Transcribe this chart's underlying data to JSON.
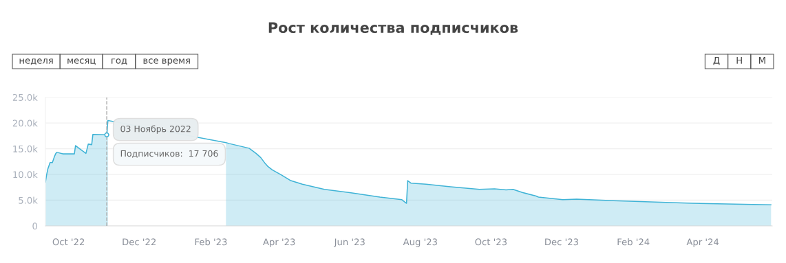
{
  "chart_data": {
    "type": "area",
    "title": "Рост количества подписчиков",
    "annotations": [
      "неделя",
      "месяц",
      "год",
      "все время",
      "Д",
      "Н",
      "М",
      {
        "text": "03 Ноябрь 2022",
        "x": "2022-11-03",
        "y": 17706
      },
      {
        "text": "Подписчиков:  17 706",
        "x": "2022-11-03",
        "y": 17706
      }
    ],
    "series": [
      {
        "color": "#3fb3d6",
        "x": [
          "2022-09-11",
          "2022-09-12",
          "2022-09-13",
          "2022-09-15",
          "2022-09-17",
          "2022-09-19",
          "2022-09-20",
          "2022-09-21",
          "2022-09-26",
          "2022-10-06",
          "2022-10-07",
          "2022-10-16",
          "2022-10-18",
          "2022-10-21",
          "2022-10-22",
          "2022-11-03",
          "2022-11-04",
          "2022-12-11",
          "2023-01-20",
          "2023-02-14",
          "2023-02-17",
          "2023-03-06",
          "2023-03-12",
          "2023-03-16",
          "2023-03-20",
          "2023-03-22",
          "2023-03-26",
          "2023-04-03",
          "2023-04-11",
          "2023-04-21",
          "2023-05-10",
          "2023-06-03",
          "2023-06-27",
          "2023-07-16",
          "2023-07-20",
          "2023-07-21",
          "2023-07-24",
          "2023-08-06",
          "2023-08-27",
          "2023-09-21",
          "2023-10-04",
          "2023-10-14",
          "2023-10-20",
          "2023-10-28",
          "2023-11-09",
          "2023-11-11",
          "2023-12-02",
          "2023-12-14",
          "2024-01-15",
          "2024-03-23",
          "2024-05-30"
        ],
        "values": [
          8500,
          9900,
          11000,
          12300,
          12300,
          13600,
          14100,
          14300,
          14000,
          14000,
          15600,
          14100,
          15900,
          15800,
          17800,
          17706,
          20500,
          null,
          null,
          16200,
          16000,
          15100,
          14100,
          13300,
          12100,
          11600,
          10900,
          9900,
          8800,
          8100,
          7100,
          6400,
          5600,
          5100,
          4400,
          8800,
          8300,
          8100,
          7600,
          7100,
          7200,
          7000,
          7100,
          6500,
          5800,
          5600,
          5100,
          5200,
          4900,
          4400,
          4100
        ]
      }
    ],
    "xlim": [
      "2022-09-11",
      "2024-05-31"
    ],
    "xticks": [
      {
        "value": "2022-10-01",
        "label": "Oct '22"
      },
      {
        "value": "2022-12-01",
        "label": "Dec '22"
      },
      {
        "value": "2023-02-01",
        "label": "Feb '23"
      },
      {
        "value": "2023-04-01",
        "label": "Apr '23"
      },
      {
        "value": "2023-06-01",
        "label": "Jun '23"
      },
      {
        "value": "2023-08-01",
        "label": "Aug '23"
      },
      {
        "value": "2023-10-01",
        "label": "Oct '23"
      },
      {
        "value": "2023-12-01",
        "label": "Dec '23"
      },
      {
        "value": "2024-02-01",
        "label": "Feb '24"
      },
      {
        "value": "2024-04-01",
        "label": "Apr '24"
      }
    ],
    "ylim": [
      0,
      25000
    ],
    "yticks": [
      0,
      {
        "value": 5000,
        "label": "5.0k"
      },
      {
        "value": 10000,
        "label": "10.0k"
      },
      {
        "value": 15000,
        "label": "15.0k"
      },
      {
        "value": 20000,
        "label": "20.0k"
      },
      {
        "value": 25000,
        "label": "25.0k"
      }
    ],
    "ref_lines": [
      {
        "axis": "x",
        "value": "2022-11-03",
        "line_style": "dashed",
        "color": "#aaaaaa"
      }
    ],
    "grid": "y",
    "legend": false,
    "marker": "none",
    "line_style": "solid"
  }
}
